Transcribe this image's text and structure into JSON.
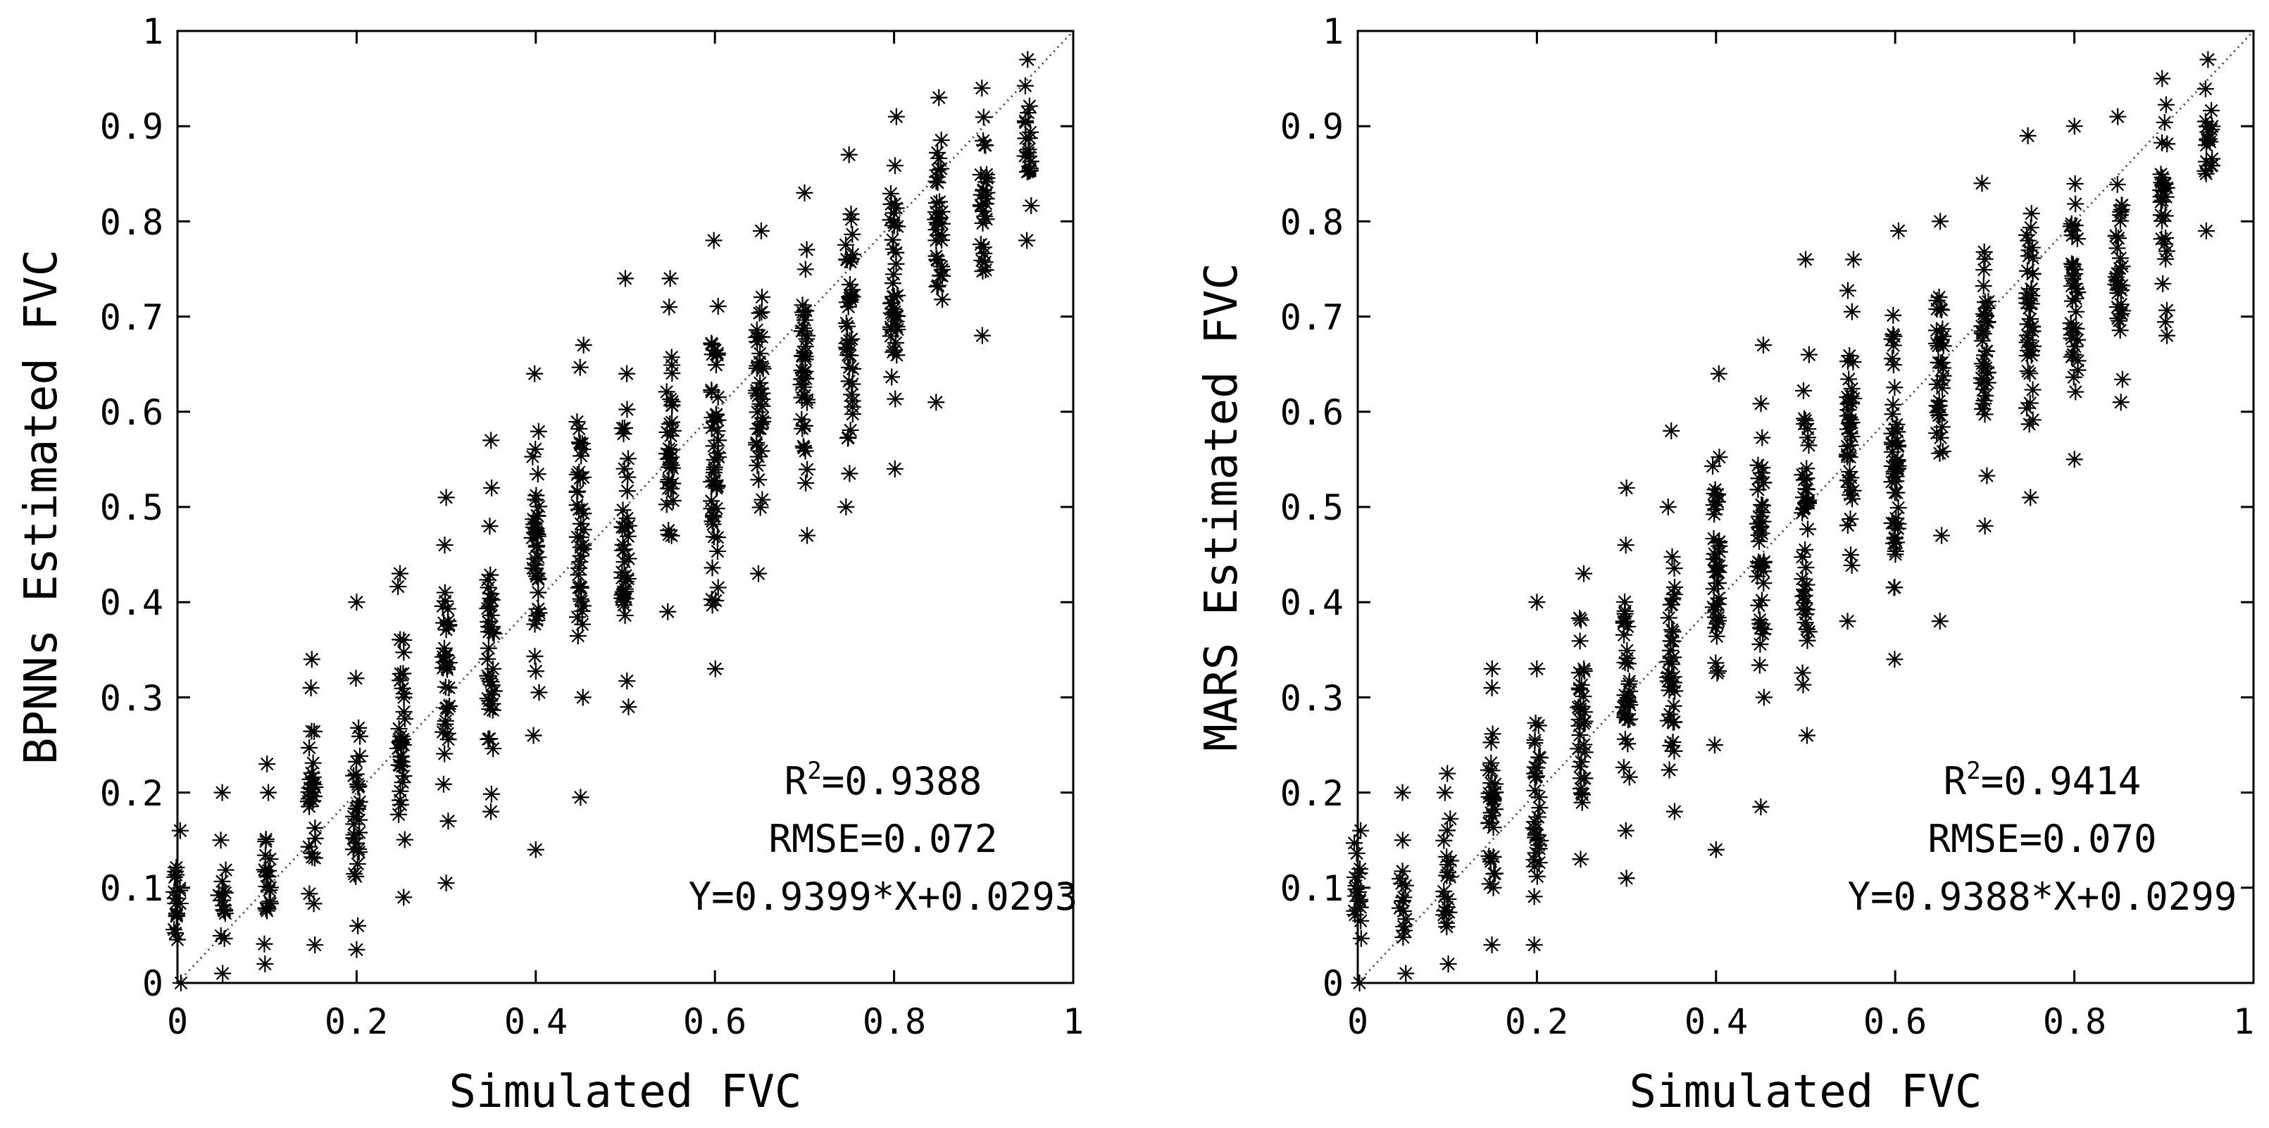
{
  "chart_data": [
    {
      "type": "scatter",
      "xlabel": "Simulated FVC",
      "ylabel": "BPNNs Estimated FVC",
      "xlim": [
        0,
        1
      ],
      "ylim": [
        0,
        1
      ],
      "xticks": [
        "0",
        "0.2",
        "0.4",
        "0.6",
        "0.8",
        "1"
      ],
      "yticks": [
        "0",
        "0.1",
        "0.2",
        "0.3",
        "0.4",
        "0.5",
        "0.6",
        "0.7",
        "0.8",
        "0.9",
        "1"
      ],
      "reference_line": "1:1",
      "marker": "asterisk",
      "annotations": [
        "R²=0.9388",
        "RMSE=0.072",
        "Y=0.9399*X+0.0293"
      ],
      "stats": {
        "r2_label": "R",
        "r2_sup": "2",
        "r2_value": "=0.9388",
        "rmse": "RMSE=0.072",
        "fit": "Y=0.9399*X+0.0293"
      },
      "columns": [
        {
          "x": 0.0,
          "min": 0.0,
          "max": 0.16,
          "outliers": []
        },
        {
          "x": 0.05,
          "min": 0.01,
          "max": 0.15,
          "outliers": [
            0.2
          ]
        },
        {
          "x": 0.1,
          "min": 0.02,
          "max": 0.2,
          "outliers": [
            0.23
          ]
        },
        {
          "x": 0.15,
          "min": 0.04,
          "max": 0.31,
          "outliers": [
            0.34
          ]
        },
        {
          "x": 0.2,
          "min": 0.06,
          "max": 0.32,
          "outliers": [
            0.035,
            0.4
          ]
        },
        {
          "x": 0.25,
          "min": 0.09,
          "max": 0.43,
          "outliers": []
        },
        {
          "x": 0.3,
          "min": 0.17,
          "max": 0.46,
          "outliers": [
            0.105,
            0.51
          ]
        },
        {
          "x": 0.35,
          "min": 0.18,
          "max": 0.52,
          "outliers": [
            0.57
          ]
        },
        {
          "x": 0.4,
          "min": 0.26,
          "max": 0.64,
          "outliers": [
            0.14
          ]
        },
        {
          "x": 0.45,
          "min": 0.3,
          "max": 0.67,
          "outliers": [
            0.195
          ]
        },
        {
          "x": 0.5,
          "min": 0.29,
          "max": 0.64,
          "outliers": [
            0.74
          ]
        },
        {
          "x": 0.55,
          "min": 0.39,
          "max": 0.71,
          "outliers": [
            0.74
          ]
        },
        {
          "x": 0.6,
          "min": 0.33,
          "max": 0.78,
          "outliers": []
        },
        {
          "x": 0.65,
          "min": 0.43,
          "max": 0.79,
          "outliers": []
        },
        {
          "x": 0.7,
          "min": 0.47,
          "max": 0.83,
          "outliers": []
        },
        {
          "x": 0.75,
          "min": 0.5,
          "max": 0.87,
          "outliers": []
        },
        {
          "x": 0.8,
          "min": 0.54,
          "max": 0.91,
          "outliers": []
        },
        {
          "x": 0.85,
          "min": 0.61,
          "max": 0.93,
          "outliers": []
        },
        {
          "x": 0.9,
          "min": 0.68,
          "max": 0.94,
          "outliers": []
        },
        {
          "x": 0.95,
          "min": 0.78,
          "max": 0.97,
          "outliers": []
        }
      ]
    },
    {
      "type": "scatter",
      "xlabel": "Simulated FVC",
      "ylabel": "MARS Estimated FVC",
      "xlim": [
        0,
        1
      ],
      "ylim": [
        0,
        1
      ],
      "xticks": [
        "0",
        "0.2",
        "0.4",
        "0.6",
        "0.8",
        "1"
      ],
      "yticks": [
        "0",
        "0.1",
        "0.2",
        "0.3",
        "0.4",
        "0.5",
        "0.6",
        "0.7",
        "0.8",
        "0.9",
        "1"
      ],
      "reference_line": "1:1",
      "marker": "asterisk",
      "annotations": [
        "R²=0.9414",
        "RMSE=0.070",
        "Y=0.9388*X+0.0299"
      ],
      "stats": {
        "r2_label": "R",
        "r2_sup": "2",
        "r2_value": "=0.9414",
        "rmse": "RMSE=0.070",
        "fit": "Y=0.9388*X+0.0299"
      },
      "columns": [
        {
          "x": 0.0,
          "min": 0.0,
          "max": 0.16,
          "outliers": []
        },
        {
          "x": 0.05,
          "min": 0.01,
          "max": 0.15,
          "outliers": [
            0.2
          ]
        },
        {
          "x": 0.1,
          "min": 0.02,
          "max": 0.2,
          "outliers": [
            0.22
          ]
        },
        {
          "x": 0.15,
          "min": 0.04,
          "max": 0.31,
          "outliers": [
            0.33
          ]
        },
        {
          "x": 0.2,
          "min": 0.04,
          "max": 0.33,
          "outliers": [
            0.4
          ]
        },
        {
          "x": 0.25,
          "min": 0.13,
          "max": 0.43,
          "outliers": []
        },
        {
          "x": 0.3,
          "min": 0.16,
          "max": 0.46,
          "outliers": [
            0.11,
            0.52
          ]
        },
        {
          "x": 0.35,
          "min": 0.18,
          "max": 0.5,
          "outliers": [
            0.58
          ]
        },
        {
          "x": 0.4,
          "min": 0.25,
          "max": 0.64,
          "outliers": [
            0.14
          ]
        },
        {
          "x": 0.45,
          "min": 0.3,
          "max": 0.67,
          "outliers": [
            0.185
          ]
        },
        {
          "x": 0.5,
          "min": 0.26,
          "max": 0.66,
          "outliers": [
            0.76
          ]
        },
        {
          "x": 0.55,
          "min": 0.38,
          "max": 0.76,
          "outliers": []
        },
        {
          "x": 0.6,
          "min": 0.34,
          "max": 0.79,
          "outliers": []
        },
        {
          "x": 0.65,
          "min": 0.47,
          "max": 0.8,
          "outliers": [
            0.38
          ]
        },
        {
          "x": 0.7,
          "min": 0.48,
          "max": 0.84,
          "outliers": []
        },
        {
          "x": 0.75,
          "min": 0.51,
          "max": 0.89,
          "outliers": []
        },
        {
          "x": 0.8,
          "min": 0.55,
          "max": 0.9,
          "outliers": []
        },
        {
          "x": 0.85,
          "min": 0.61,
          "max": 0.91,
          "outliers": []
        },
        {
          "x": 0.9,
          "min": 0.68,
          "max": 0.95,
          "outliers": []
        },
        {
          "x": 0.95,
          "min": 0.79,
          "max": 0.97,
          "outliers": []
        }
      ]
    }
  ]
}
